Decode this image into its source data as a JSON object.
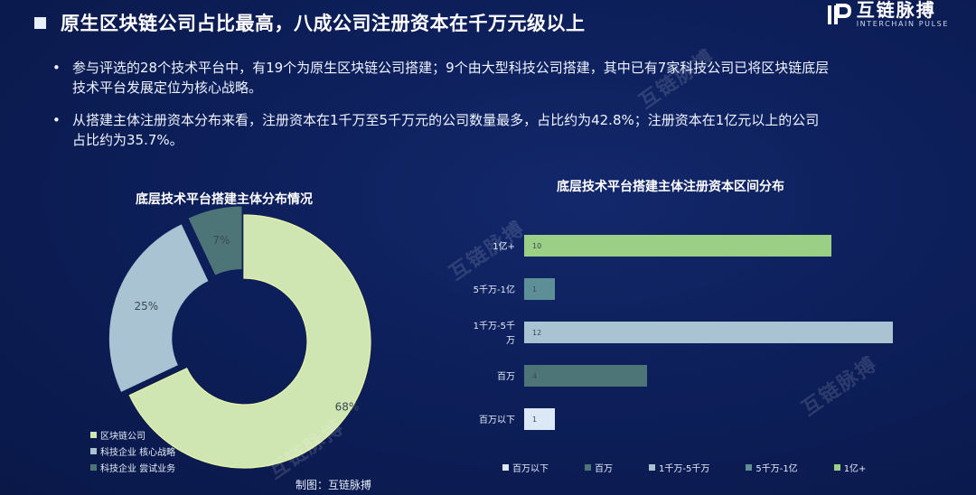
{
  "header": {
    "title": "原生区块链公司占比最高，八成公司注册资本在千万元级以上",
    "logo_cn": "互链脉搏",
    "logo_en": "INTERCHAIN PULSE"
  },
  "bullets": [
    "参与评选的28个技术平台中，有19个为原生区块链公司搭建；9个由大型科技公司搭建，其中已有7家科技公司已将区块链底层技术平台发展定位为核心战略。",
    "从搭建主体注册资本分布来看，注册资本在1千万至5千万元的公司数量最多，占比约为42.8%；注册资本在1亿元以上的公司占比约为35.7%。"
  ],
  "credit": "制图：互链脉搏",
  "colors": {
    "pale_green": "#cfe6b2",
    "light_blue": "#a9c3d3",
    "teal_dark": "#4d7578",
    "very_light": "#dde8f6",
    "mid_teal": "#5e8f96",
    "green": "#9bcf86"
  },
  "chart_data": [
    {
      "type": "pie",
      "title": "底层技术平台搭建主体分布情况",
      "slices": [
        {
          "name": "区块链公司",
          "value": 68,
          "label": "68%",
          "color": "#cfe6b2"
        },
        {
          "name": "科技企业 核心战略",
          "value": 25,
          "label": "25%",
          "color": "#a9c3d3"
        },
        {
          "name": "科技企业 尝试业务",
          "value": 7,
          "label": "7%",
          "color": "#4d7578"
        }
      ]
    },
    {
      "type": "bar",
      "orientation": "horizontal",
      "title": "底层技术平台搭建主体注册资本区间分布",
      "categories": [
        "1亿+",
        "5千万-1亿",
        "1千万-5千万",
        "百万",
        "百万以下"
      ],
      "values": [
        10,
        1,
        12,
        4,
        1
      ],
      "colors": [
        "#9bcf86",
        "#5e8f96",
        "#a9c3d3",
        "#4d7578",
        "#dde8f6"
      ],
      "xlim": [
        0,
        12
      ],
      "legend": [
        "百万以下",
        "百万",
        "1千万-5千万",
        "5千万-1亿",
        "1亿+"
      ],
      "legend_colors": [
        "#dde8f6",
        "#4d7578",
        "#a9c3d3",
        "#5e8f96",
        "#9bcf86"
      ],
      "legend_position": "bottom"
    }
  ]
}
